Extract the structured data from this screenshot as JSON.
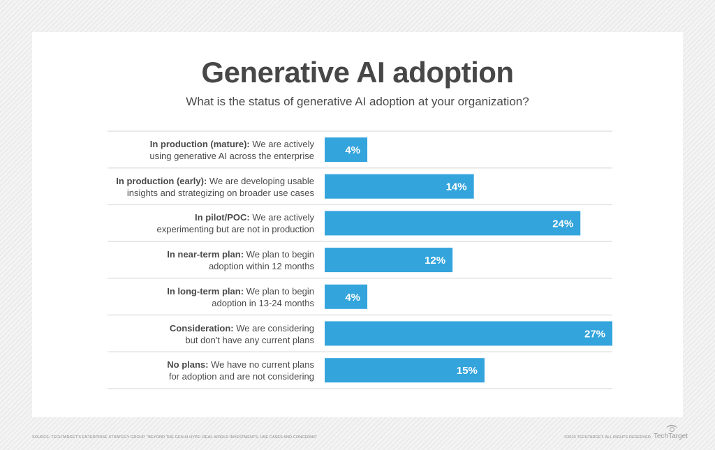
{
  "chart_data": {
    "type": "bar",
    "orientation": "horizontal",
    "title": "Generative AI adoption",
    "subtitle": "What is the status of generative AI adoption at your organization?",
    "categories": [
      {
        "bold": "In production (mature):",
        "text": " We are actively",
        "line2": "using generative AI across the enterprise"
      },
      {
        "bold": "In production (early):",
        "text": " We are developing usable",
        "line2": "insights and strategizing on broader use cases"
      },
      {
        "bold": "In pilot/POC:",
        "text": " We are actively",
        "line2": "experimenting but are not in production"
      },
      {
        "bold": "In near-term plan:",
        "text": " We plan to begin",
        "line2": "adoption within 12 months"
      },
      {
        "bold": "In long-term plan:",
        "text": " We plan to begin",
        "line2": "adoption in 13-24 months"
      },
      {
        "bold": "Consideration:",
        "text": " We are considering",
        "line2": "but don't have any current plans"
      },
      {
        "bold": "No plans:",
        "text": " We have no current plans",
        "line2": "for adoption and are not considering"
      }
    ],
    "values": [
      4,
      14,
      24,
      12,
      4,
      27,
      15
    ],
    "value_labels": [
      "4%",
      "14%",
      "24%",
      "12%",
      "4%",
      "27%",
      "15%"
    ],
    "unit": "%",
    "bar_color": "#33a4dc",
    "grid": false
  },
  "footer": {
    "source": "SOURCE: TECHTARGET'S ENTERPRISE STRATEGY GROUP, \"BEYOND THE GEN AI HYPE: REAL-WORLD INVESTMENTS, USE CASES AND CONCERNS\"",
    "copyright": "©2023 TECHTARGET. ALL RIGHTS RESERVED",
    "logo": "TechTarget"
  }
}
